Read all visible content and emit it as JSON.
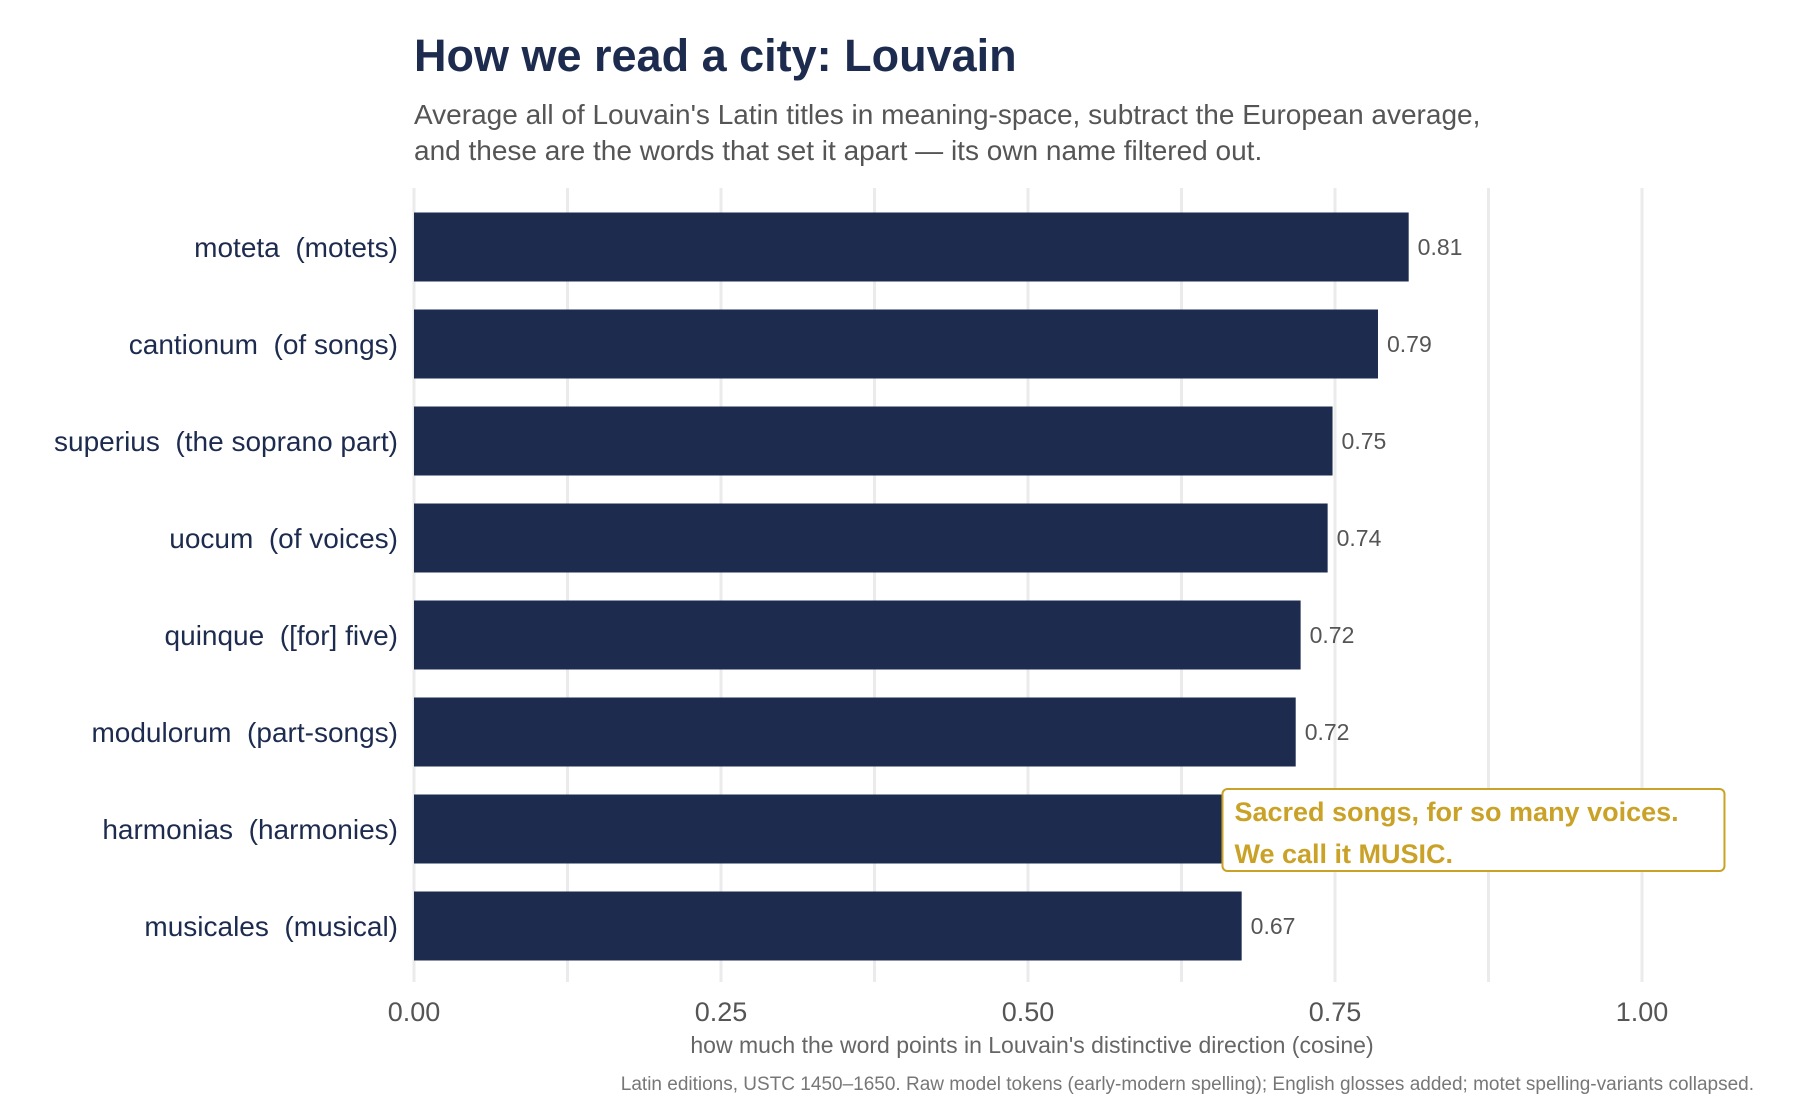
{
  "chart_data": {
    "type": "bar",
    "orientation": "horizontal",
    "title": "How we read a city: Louvain",
    "subtitle": [
      "Average all of Louvain's Latin titles in meaning-space, subtract the European average,",
      "and these are the words that set it apart — its own name filtered out."
    ],
    "categories": [
      "moteta  (motets)",
      "cantionum  (of songs)",
      "superius  (the soprano part)",
      "uocum  (of voices)",
      "quinque  ([for] five)",
      "modulorum  (part-songs)",
      "harmonias  (harmonies)",
      "musicales  (musical)"
    ],
    "values": [
      0.81,
      0.785,
      0.748,
      0.744,
      0.722,
      0.718,
      0.7,
      0.674
    ],
    "value_labels": [
      "0.81",
      "0.79",
      "0.75",
      "0.74",
      "0.72",
      "0.72",
      "",
      "0.67"
    ],
    "xlim": [
      0,
      1.0
    ],
    "xticks": [
      0,
      0.25,
      0.5,
      0.75,
      1.0
    ],
    "xtick_labels": [
      "0.00",
      "0.25",
      "0.50",
      "0.75",
      "1.00"
    ],
    "xlabel": "how much the word points in Louvain's distinctive direction (cosine)",
    "ylabel": "",
    "caption": "Latin editions, USTC 1450–1650. Raw model tokens (early-modern spelling); English glosses added; motet spelling-variants collapsed.",
    "grid": "vertical",
    "legend": "none",
    "annotation": {
      "lines": [
        "Sacred songs, for so many voices.",
        "We call it MUSIC."
      ],
      "anchor_x": 0.66,
      "anchor_category": "harmonias  (harmonies)"
    },
    "colors": {
      "bar": "#1d2b4f",
      "annotation": "#c9a227",
      "grid": "#ebebeb"
    }
  }
}
